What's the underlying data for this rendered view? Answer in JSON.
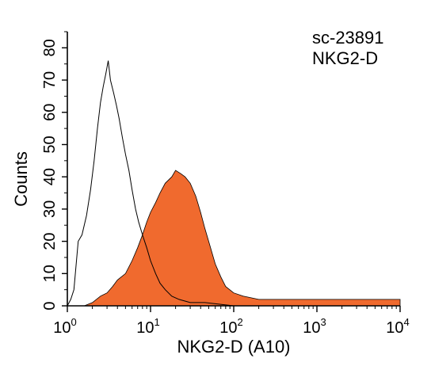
{
  "chart_data": {
    "type": "area",
    "title": "",
    "xlabel": "NKG2-D (A10)",
    "ylabel": "Counts",
    "x_scale": "log",
    "xlim": [
      1,
      10000
    ],
    "ylim": [
      0,
      85
    ],
    "x_ticks": [
      {
        "value": 1,
        "base": "10",
        "exp": "0"
      },
      {
        "value": 10,
        "base": "10",
        "exp": "1"
      },
      {
        "value": 100,
        "base": "10",
        "exp": "2"
      },
      {
        "value": 1000,
        "base": "10",
        "exp": "3"
      },
      {
        "value": 10000,
        "base": "10",
        "exp": "4"
      }
    ],
    "y_ticks": [
      0,
      10,
      20,
      30,
      40,
      50,
      60,
      70,
      80
    ],
    "grid": false,
    "annotations": [
      "sc-23891",
      "NKG2-D"
    ],
    "series": [
      {
        "style": "outline",
        "color": "#000000",
        "x": [
          1.0,
          1.1,
          1.2,
          1.35,
          1.5,
          1.7,
          1.9,
          2.1,
          2.3,
          2.5,
          2.7,
          2.9,
          3.1,
          3.3,
          3.6,
          3.9,
          4.2,
          4.6,
          5.0,
          5.5,
          6.0,
          6.6,
          7.2,
          8.0,
          9.0,
          10.0,
          11.5,
          13.0,
          15.0,
          18.0,
          22.0,
          30.0,
          45.0,
          100.0,
          1000.0,
          10000.0
        ],
        "y": [
          0,
          2,
          5,
          20,
          22,
          28,
          36,
          45,
          55,
          63,
          68,
          72,
          76,
          70,
          66,
          62,
          58,
          52,
          47,
          42,
          36,
          30,
          26,
          22,
          18,
          14,
          10,
          7,
          5,
          3,
          2,
          1,
          1,
          0,
          0,
          0
        ]
      },
      {
        "style": "filled",
        "color": "#f06a2e",
        "x": [
          1.0,
          1.3,
          1.6,
          2.0,
          2.5,
          3.0,
          3.5,
          4.0,
          5.0,
          6.0,
          7.0,
          8.0,
          9.0,
          10.0,
          11.5,
          13.0,
          15.0,
          18.0,
          20.0,
          23.0,
          26.0,
          30.0,
          35.0,
          40.0,
          45.0,
          50.0,
          60.0,
          70.0,
          80.0,
          100.0,
          130.0,
          200.0,
          400.0,
          1000.0,
          3000.0,
          10000.0
        ],
        "y": [
          0,
          0,
          0,
          1,
          3,
          4,
          6,
          8,
          10,
          14,
          18,
          22,
          26,
          29,
          32,
          35,
          38,
          40,
          42,
          41,
          40,
          38,
          34,
          29,
          24,
          20,
          13,
          9,
          6,
          4,
          3,
          2,
          2,
          2,
          2,
          2
        ]
      }
    ]
  }
}
